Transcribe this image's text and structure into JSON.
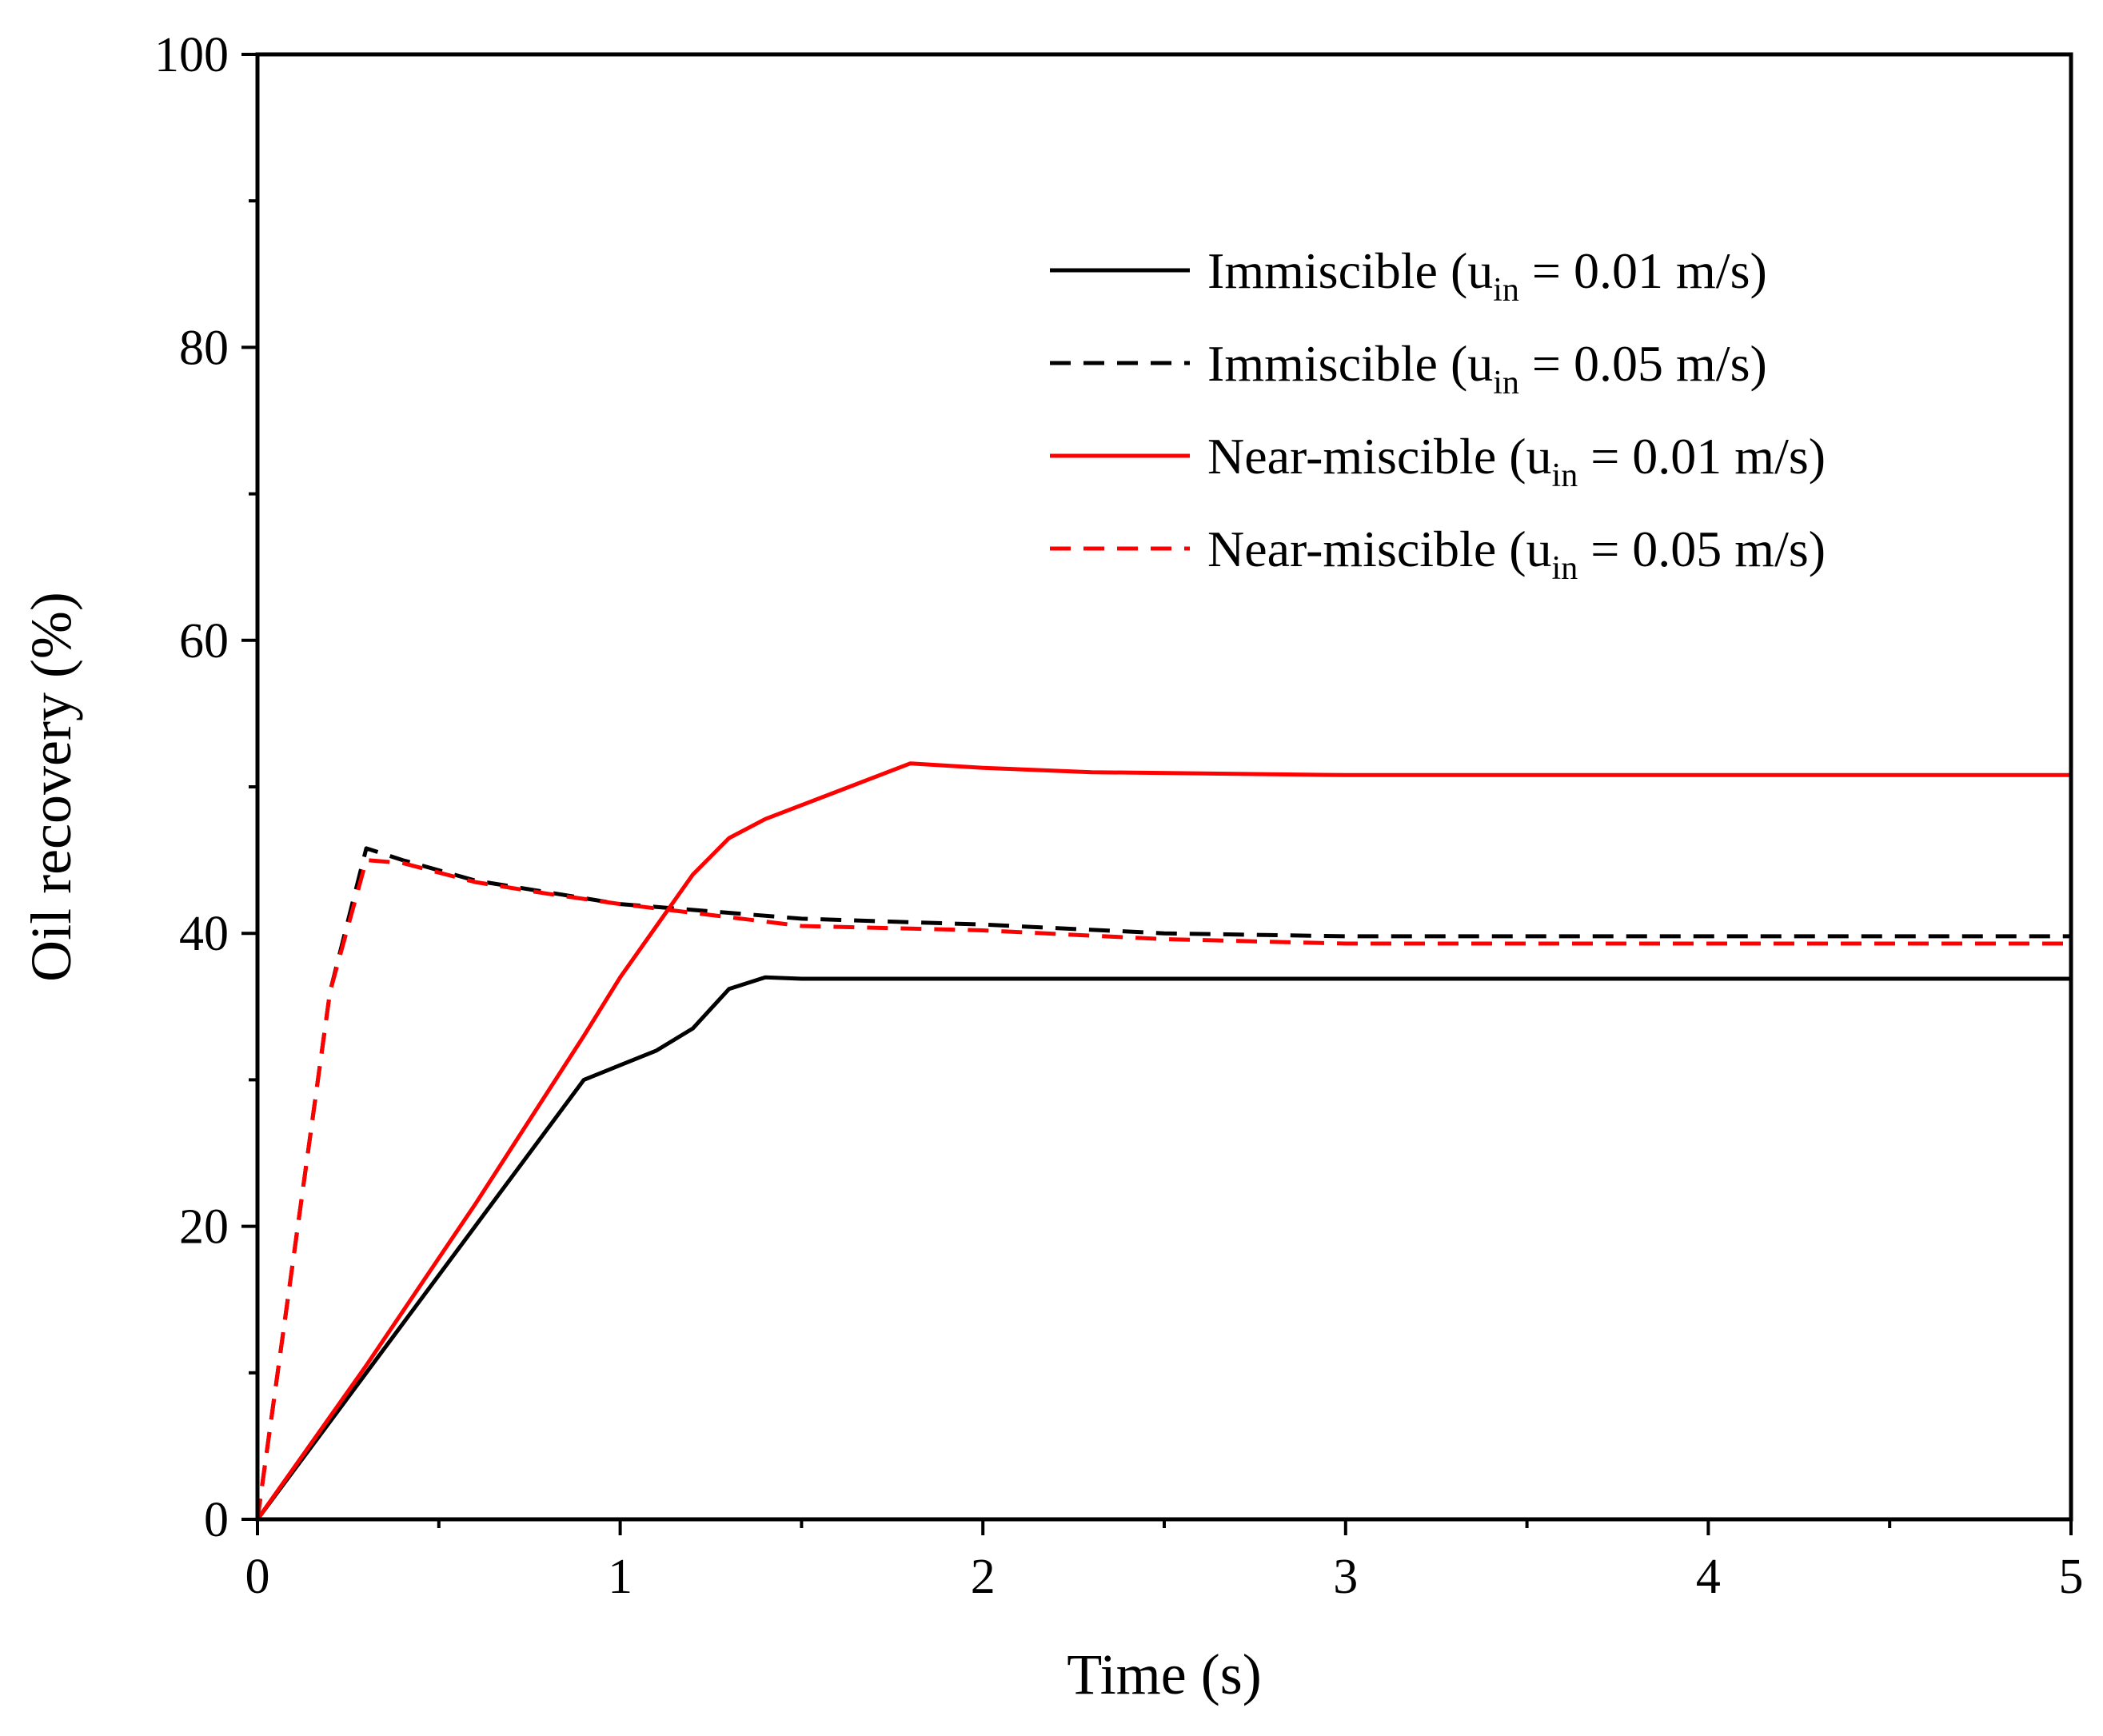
{
  "chart_data": {
    "type": "line",
    "title": "",
    "xlabel": "Time (s)",
    "ylabel": "Oil recovery (%)",
    "xlim": [
      0,
      5
    ],
    "ylim": [
      0,
      100
    ],
    "xticks": [
      0,
      1,
      2,
      3,
      4,
      5
    ],
    "yticks": [
      0,
      20,
      40,
      60,
      80,
      100
    ],
    "x_minor_step": 0.5,
    "y_minor_step": 10,
    "grid": false,
    "legend_position": "top-right",
    "series": [
      {
        "name": "Immiscible (u_in = 0.01 m/s)",
        "legend": {
          "prefix": "Immiscible (u",
          "sub": "in",
          "suffix": " = 0.01 m/s)"
        },
        "color": "#000000",
        "style": "solid",
        "x": [
          0,
          0.3,
          0.6,
          0.9,
          1.0,
          1.1,
          1.2,
          1.3,
          1.4,
          1.5,
          2.0,
          3.0,
          4.0,
          5.0
        ],
        "y": [
          0,
          10,
          20,
          30,
          31,
          32,
          33.5,
          36.2,
          37,
          36.9,
          36.9,
          36.9,
          36.9,
          36.9
        ]
      },
      {
        "name": "Immiscible (u_in = 0.05 m/s)",
        "legend": {
          "prefix": "Immiscible (u",
          "sub": "in",
          "suffix": " = 0.05 m/s)"
        },
        "color": "#000000",
        "style": "dashed",
        "x": [
          0,
          0.1,
          0.2,
          0.3,
          0.4,
          0.6,
          0.8,
          1.0,
          1.5,
          2.0,
          2.5,
          3.0,
          4.0,
          5.0
        ],
        "y": [
          0,
          18,
          36,
          45.8,
          45,
          43.6,
          42.8,
          42,
          41,
          40.6,
          40,
          39.8,
          39.8,
          39.8
        ]
      },
      {
        "name": "Near-miscible (u_in = 0.01 m/s)",
        "legend": {
          "prefix": "Near-miscible (u",
          "sub": "in",
          "suffix": " = 0.01 m/s)"
        },
        "color": "#ff0000",
        "style": "solid",
        "x": [
          0,
          0.3,
          0.6,
          0.9,
          1.0,
          1.1,
          1.2,
          1.3,
          1.4,
          1.6,
          1.8,
          2.0,
          2.3,
          3.0,
          4.0,
          5.0
        ],
        "y": [
          0,
          10.5,
          21.5,
          33,
          37,
          40.5,
          44,
          46.5,
          47.8,
          49.7,
          51.6,
          51.3,
          51,
          50.8,
          50.8,
          50.8
        ]
      },
      {
        "name": "Near-miscible (u_in = 0.05 m/s)",
        "legend": {
          "prefix": "Near-miscible (u",
          "sub": "in",
          "suffix": " = 0.05 m/s)"
        },
        "color": "#ff0000",
        "style": "dashed",
        "x": [
          0,
          0.1,
          0.2,
          0.3,
          0.4,
          0.6,
          0.8,
          1.0,
          1.5,
          2.0,
          2.5,
          3.0,
          4.0,
          5.0
        ],
        "y": [
          0,
          18,
          36,
          45,
          44.8,
          43.5,
          42.7,
          42,
          40.5,
          40.2,
          39.6,
          39.3,
          39.3,
          39.3
        ]
      }
    ]
  }
}
